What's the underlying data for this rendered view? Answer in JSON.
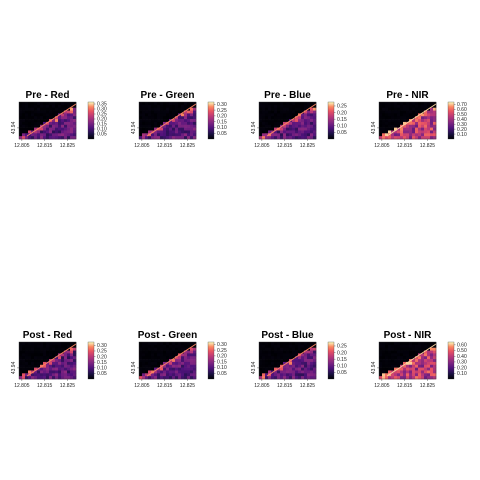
{
  "chart_data": [
    {
      "type": "heatmap",
      "title": "Pre - Red",
      "x_ticks": [
        "12.805",
        "12.815",
        "12.825"
      ],
      "y_ticks": [
        "43.94"
      ],
      "legend_ticks": [
        "0.35",
        "0.30",
        "0.25",
        "0.20",
        "0.15",
        "0.10",
        "0.05"
      ],
      "value_range": [
        0.0,
        0.37
      ],
      "colormap": "magma",
      "pattern": "dark"
    },
    {
      "type": "heatmap",
      "title": "Pre - Green",
      "x_ticks": [
        "12.805",
        "12.815",
        "12.825"
      ],
      "y_ticks": [
        "43.94"
      ],
      "legend_ticks": [
        "0.30",
        "0.25",
        "0.20",
        "0.15",
        "0.10",
        "0.05"
      ],
      "value_range": [
        0.0,
        0.32
      ],
      "colormap": "magma",
      "pattern": "dark"
    },
    {
      "type": "heatmap",
      "title": "Pre - Blue",
      "x_ticks": [
        "12.805",
        "12.815",
        "12.825"
      ],
      "y_ticks": [
        "43.94"
      ],
      "legend_ticks": [
        "0.25",
        "0.20",
        "0.15",
        "0.10",
        "0.05"
      ],
      "value_range": [
        0.0,
        0.28
      ],
      "colormap": "magma",
      "pattern": "dark"
    },
    {
      "type": "heatmap",
      "title": "Pre - NIR",
      "x_ticks": [
        "12.805",
        "12.815",
        "12.825"
      ],
      "y_ticks": [
        "43.94"
      ],
      "legend_ticks": [
        "0.70",
        "0.60",
        "0.50",
        "0.40",
        "0.30",
        "0.20",
        "0.10"
      ],
      "value_range": [
        0.0,
        0.75
      ],
      "colormap": "magma",
      "pattern": "bright"
    },
    {
      "type": "heatmap",
      "title": "Post - Red",
      "x_ticks": [
        "12.805",
        "12.815",
        "12.825"
      ],
      "y_ticks": [
        "43.94"
      ],
      "legend_ticks": [
        "0.30",
        "0.25",
        "0.20",
        "0.15",
        "0.10",
        "0.05"
      ],
      "value_range": [
        0.0,
        0.33
      ],
      "colormap": "magma",
      "pattern": "dark"
    },
    {
      "type": "heatmap",
      "title": "Post - Green",
      "x_ticks": [
        "12.805",
        "12.815",
        "12.825"
      ],
      "y_ticks": [
        "43.94"
      ],
      "legend_ticks": [
        "0.30",
        "0.25",
        "0.20",
        "0.15",
        "0.10",
        "0.05"
      ],
      "value_range": [
        0.0,
        0.32
      ],
      "colormap": "magma",
      "pattern": "dark"
    },
    {
      "type": "heatmap",
      "title": "Post - Blue",
      "x_ticks": [
        "12.805",
        "12.815",
        "12.825"
      ],
      "y_ticks": [
        "43.94"
      ],
      "legend_ticks": [
        "0.25",
        "0.20",
        "0.15",
        "0.10",
        "0.05"
      ],
      "value_range": [
        0.0,
        0.28
      ],
      "colormap": "magma",
      "pattern": "dark"
    },
    {
      "type": "heatmap",
      "title": "Post - NIR",
      "x_ticks": [
        "12.805",
        "12.815",
        "12.825"
      ],
      "y_ticks": [
        "43.94"
      ],
      "legend_ticks": [
        "0.60",
        "0.50",
        "0.40",
        "0.30",
        "0.20",
        "0.10"
      ],
      "value_range": [
        0.0,
        0.65
      ],
      "colormap": "magma",
      "pattern": "bright"
    }
  ]
}
